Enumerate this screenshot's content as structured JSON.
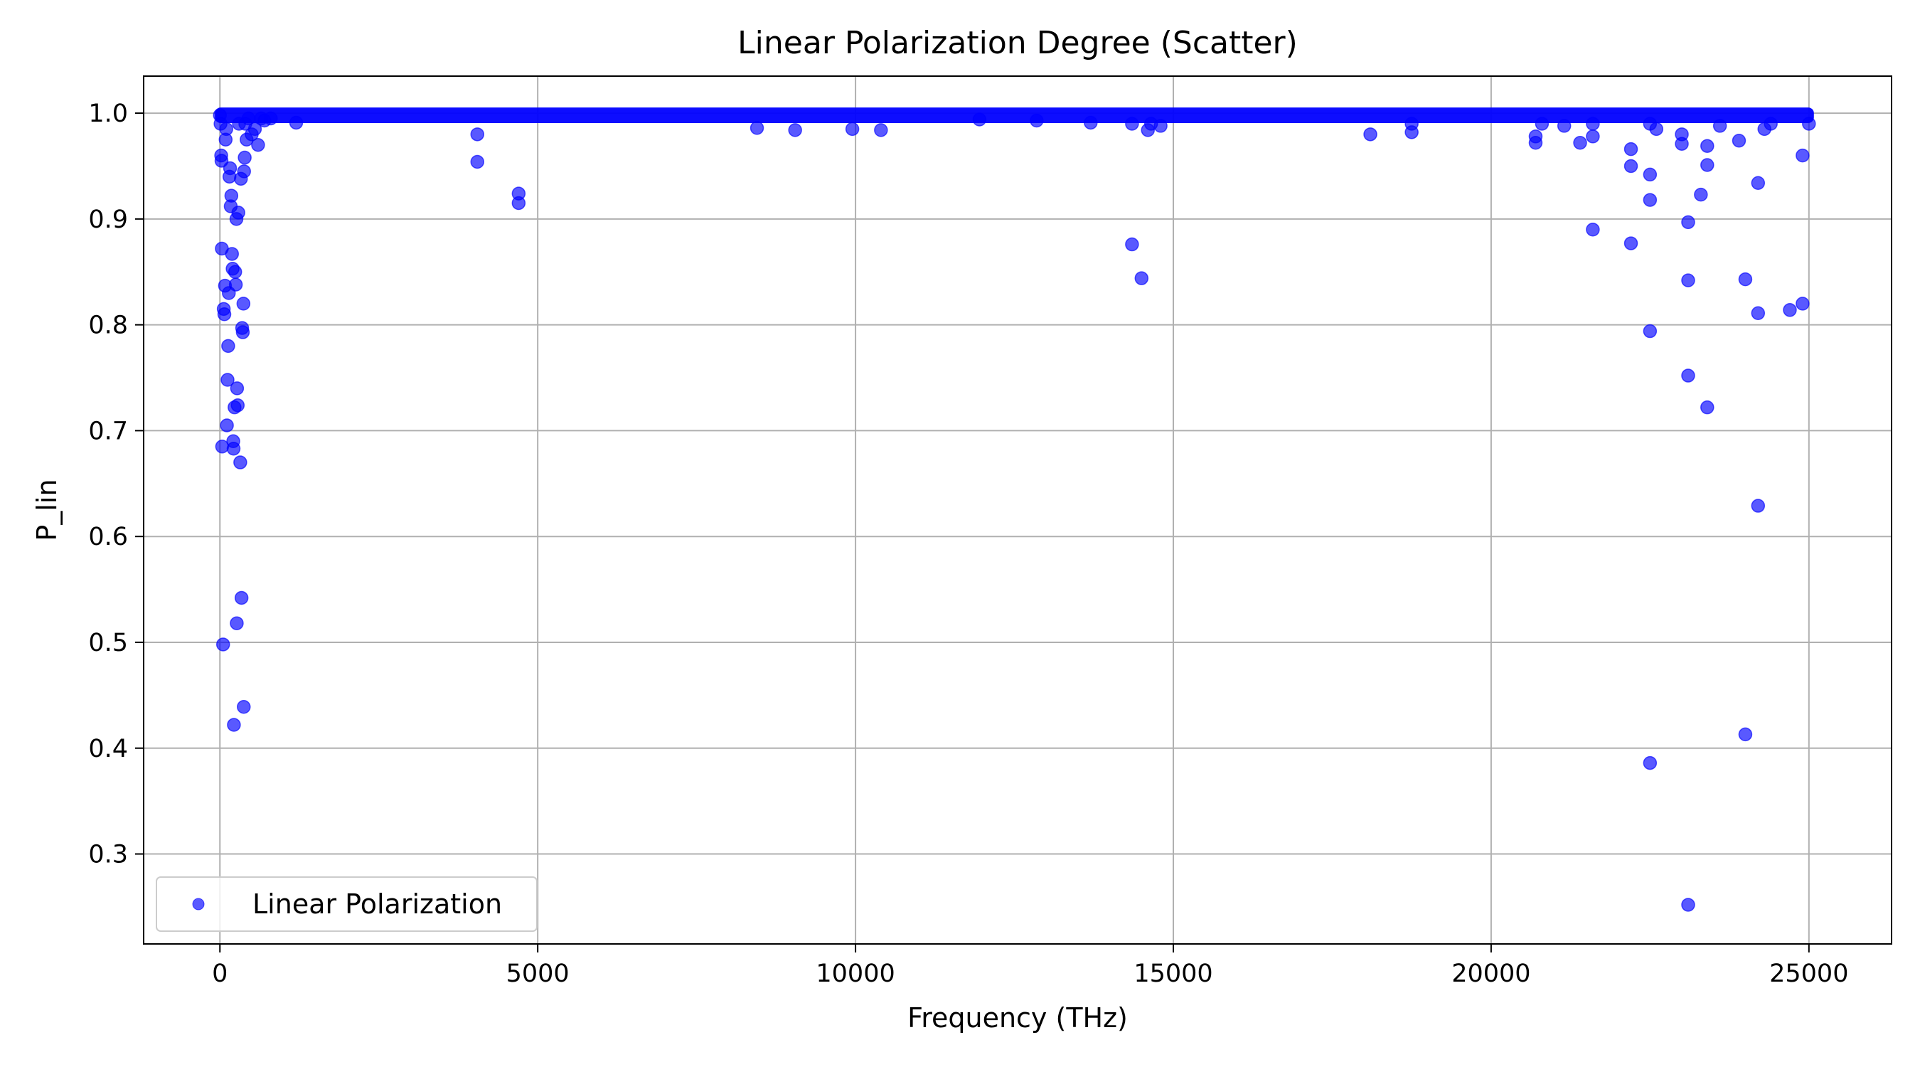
{
  "chart_data": {
    "type": "scatter",
    "title": "Linear Polarization Degree (Scatter)",
    "xlabel": "Frequency (THz)",
    "ylabel": "P_lin",
    "xlim": [
      -1200,
      26300
    ],
    "ylim": [
      0.215,
      1.035
    ],
    "xticks": [
      0,
      5000,
      10000,
      15000,
      20000,
      25000
    ],
    "xtick_labels": [
      "0",
      "5000",
      "10000",
      "15000",
      "20000",
      "25000"
    ],
    "yticks": [
      0.3,
      0.4,
      0.5,
      0.6,
      0.7,
      0.8,
      0.9,
      1.0
    ],
    "ytick_labels": [
      "0.3",
      "0.4",
      "0.5",
      "0.6",
      "0.7",
      "0.8",
      "0.9",
      "1.0"
    ],
    "grid": true,
    "legend": {
      "position": "lower-left",
      "entries": [
        "Linear Polarization"
      ]
    },
    "series": [
      {
        "name": "Linear Polarization",
        "color": "#0000ff",
        "alpha": 0.65,
        "dense_band": {
          "x_from": 0,
          "x_to": 25000,
          "y_from": 0.996,
          "y_to": 1.0
        },
        "points": [
          [
            0,
            0.998
          ],
          [
            10,
            0.99
          ],
          [
            20,
            0.96
          ],
          [
            25,
            0.955
          ],
          [
            30,
            0.872
          ],
          [
            35,
            0.685
          ],
          [
            50,
            0.498
          ],
          [
            60,
            0.815
          ],
          [
            70,
            0.81
          ],
          [
            80,
            0.837
          ],
          [
            90,
            0.975
          ],
          [
            100,
            0.985
          ],
          [
            110,
            0.705
          ],
          [
            120,
            0.748
          ],
          [
            130,
            0.78
          ],
          [
            140,
            0.83
          ],
          [
            150,
            0.94
          ],
          [
            160,
            0.948
          ],
          [
            170,
            0.912
          ],
          [
            180,
            0.922
          ],
          [
            190,
            0.867
          ],
          [
            200,
            0.853
          ],
          [
            210,
            0.69
          ],
          [
            215,
            0.683
          ],
          [
            220,
            0.422
          ],
          [
            230,
            0.722
          ],
          [
            240,
            0.85
          ],
          [
            250,
            0.838
          ],
          [
            260,
            0.9
          ],
          [
            265,
            0.518
          ],
          [
            270,
            0.74
          ],
          [
            280,
            0.724
          ],
          [
            290,
            0.906
          ],
          [
            300,
            0.99
          ],
          [
            320,
            0.67
          ],
          [
            330,
            0.938
          ],
          [
            340,
            0.542
          ],
          [
            350,
            0.797
          ],
          [
            360,
            0.793
          ],
          [
            370,
            0.82
          ],
          [
            375,
            0.439
          ],
          [
            380,
            0.945
          ],
          [
            390,
            0.958
          ],
          [
            400,
            0.99
          ],
          [
            420,
            0.975
          ],
          [
            450,
            0.995
          ],
          [
            500,
            0.98
          ],
          [
            550,
            0.985
          ],
          [
            600,
            0.97
          ],
          [
            650,
            0.995
          ],
          [
            700,
            0.993
          ],
          [
            800,
            0.995
          ],
          [
            1200,
            0.991
          ],
          [
            4050,
            0.98
          ],
          [
            4050,
            0.954
          ],
          [
            4700,
            0.924
          ],
          [
            4700,
            0.915
          ],
          [
            8450,
            0.986
          ],
          [
            9050,
            0.984
          ],
          [
            9950,
            0.985
          ],
          [
            10400,
            0.984
          ],
          [
            11950,
            0.994
          ],
          [
            12850,
            0.993
          ],
          [
            13700,
            0.991
          ],
          [
            14350,
            0.876
          ],
          [
            14350,
            0.99
          ],
          [
            14500,
            0.844
          ],
          [
            14600,
            0.984
          ],
          [
            14650,
            0.99
          ],
          [
            14800,
            0.988
          ],
          [
            18100,
            0.98
          ],
          [
            18750,
            0.982
          ],
          [
            18750,
            0.99
          ],
          [
            20700,
            0.978
          ],
          [
            20700,
            0.972
          ],
          [
            20800,
            0.99
          ],
          [
            21150,
            0.988
          ],
          [
            21400,
            0.972
          ],
          [
            21600,
            0.89
          ],
          [
            21600,
            0.978
          ],
          [
            21600,
            0.99
          ],
          [
            22200,
            0.95
          ],
          [
            22200,
            0.966
          ],
          [
            22200,
            0.877
          ],
          [
            22500,
            0.942
          ],
          [
            22500,
            0.918
          ],
          [
            22500,
            0.794
          ],
          [
            22500,
            0.386
          ],
          [
            22500,
            0.99
          ],
          [
            22600,
            0.985
          ],
          [
            23000,
            0.98
          ],
          [
            23000,
            0.971
          ],
          [
            23100,
            0.897
          ],
          [
            23100,
            0.842
          ],
          [
            23100,
            0.752
          ],
          [
            23100,
            0.252
          ],
          [
            23300,
            0.923
          ],
          [
            23400,
            0.969
          ],
          [
            23400,
            0.951
          ],
          [
            23400,
            0.722
          ],
          [
            23600,
            0.988
          ],
          [
            23900,
            0.974
          ],
          [
            24000,
            0.843
          ],
          [
            24000,
            0.413
          ],
          [
            24200,
            0.934
          ],
          [
            24200,
            0.811
          ],
          [
            24200,
            0.629
          ],
          [
            24300,
            0.985
          ],
          [
            24400,
            0.99
          ],
          [
            24700,
            0.814
          ],
          [
            24900,
            0.96
          ],
          [
            24900,
            0.82
          ],
          [
            25000,
            0.99
          ]
        ]
      }
    ]
  }
}
